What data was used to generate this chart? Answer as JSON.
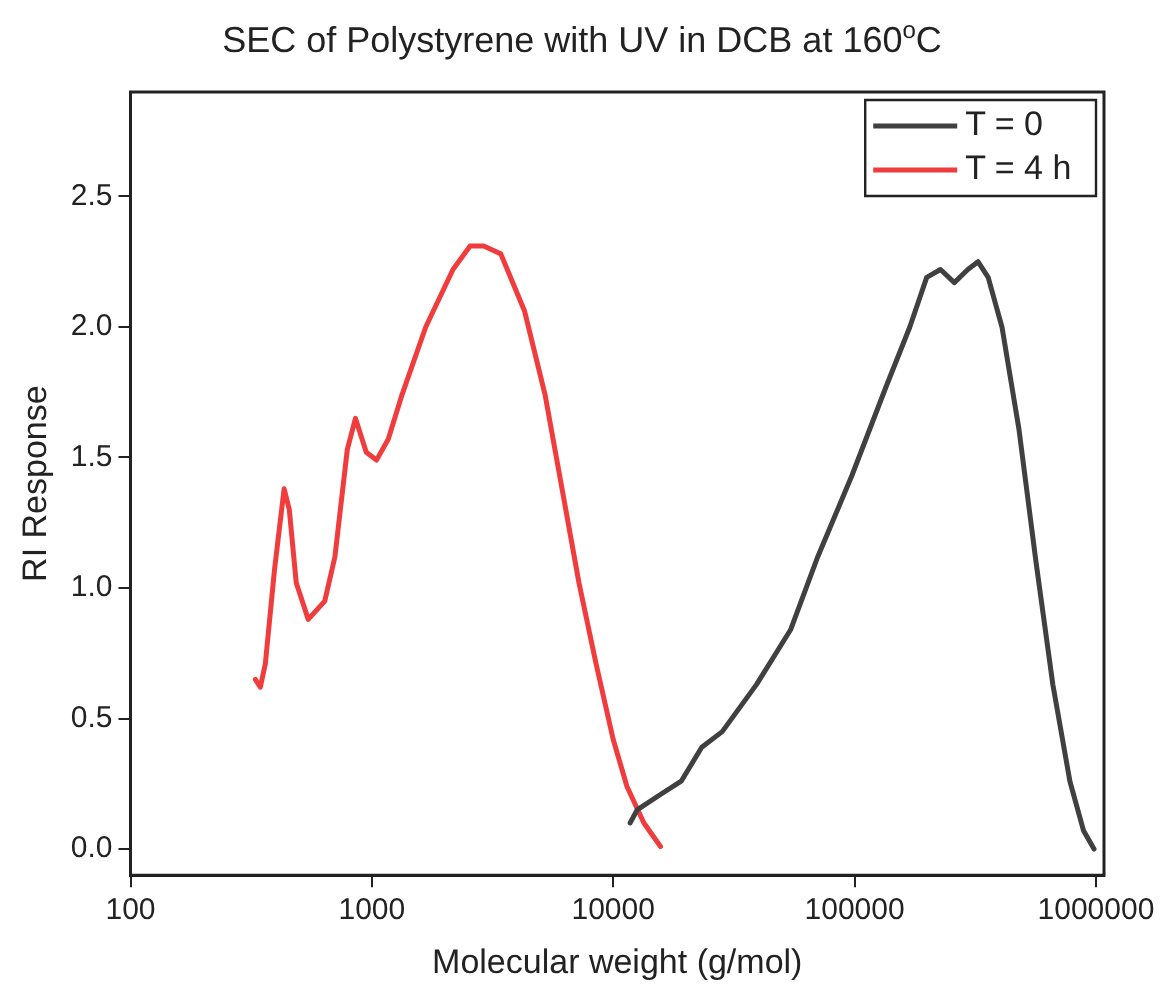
{
  "chart_data": {
    "type": "line",
    "title": "SEC of Polystyrene with UV in DCB at 160$^{o}$C",
    "xlabel": "Molecular weight (g/mol)",
    "ylabel": "RI Response",
    "log": "x",
    "xlim": [
      100,
      1080000
    ],
    "xticks": [
      100,
      1000,
      10000,
      100000,
      1000000
    ],
    "ylim": [
      -0.1,
      2.9
    ],
    "yticks": [
      {
        "value": 0,
        "label": "0.0"
      },
      {
        "value": 0.5,
        "label": "0.5"
      },
      {
        "value": 1,
        "label": "1.0"
      },
      {
        "value": 1.5,
        "label": "1.5"
      },
      {
        "value": 2,
        "label": "2.0"
      },
      {
        "value": 2.5,
        "label": "2.5"
      }
    ],
    "grid": false,
    "legend": "top right",
    "marker": "none",
    "line_style": "solid",
    "series": [
      {
        "name": "T = 0",
        "color": "#404040",
        "x": [
          11750,
          12560,
          15750,
          19130,
          23270,
          28300,
          39200,
          54300,
          70400,
          97400,
          134900,
          169400,
          199000,
          227000,
          259000,
          294600,
          324600,
          357700,
          408000,
          479500,
          564500,
          663000,
          780000,
          889000,
          982000
        ],
        "values": [
          0.1,
          0.15,
          0.21,
          0.26,
          0.39,
          0.45,
          0.63,
          0.84,
          1.12,
          1.43,
          1.77,
          2.0,
          2.19,
          2.22,
          2.17,
          2.22,
          2.25,
          2.19,
          2.0,
          1.61,
          1.1,
          0.63,
          0.26,
          0.07,
          0.0
        ]
      },
      {
        "name": "T = 4 h",
        "color": "#f03c3c",
        "x": [
          329,
          345,
          362,
          395,
          433,
          455,
          486,
          545,
          638,
          703,
          791,
          855,
          948,
          1045,
          1169,
          1333,
          1672,
          2168,
          2553,
          2906,
          3420,
          4295,
          5221,
          6138,
          7211,
          8490,
          10000,
          11400,
          13400,
          15700
        ],
        "values": [
          0.65,
          0.62,
          0.71,
          1.07,
          1.38,
          1.3,
          1.02,
          0.88,
          0.95,
          1.12,
          1.53,
          1.65,
          1.52,
          1.49,
          1.57,
          1.74,
          2.0,
          2.22,
          2.31,
          2.31,
          2.28,
          2.06,
          1.74,
          1.38,
          1.02,
          0.71,
          0.42,
          0.24,
          0.1,
          0.01
        ]
      }
    ]
  }
}
